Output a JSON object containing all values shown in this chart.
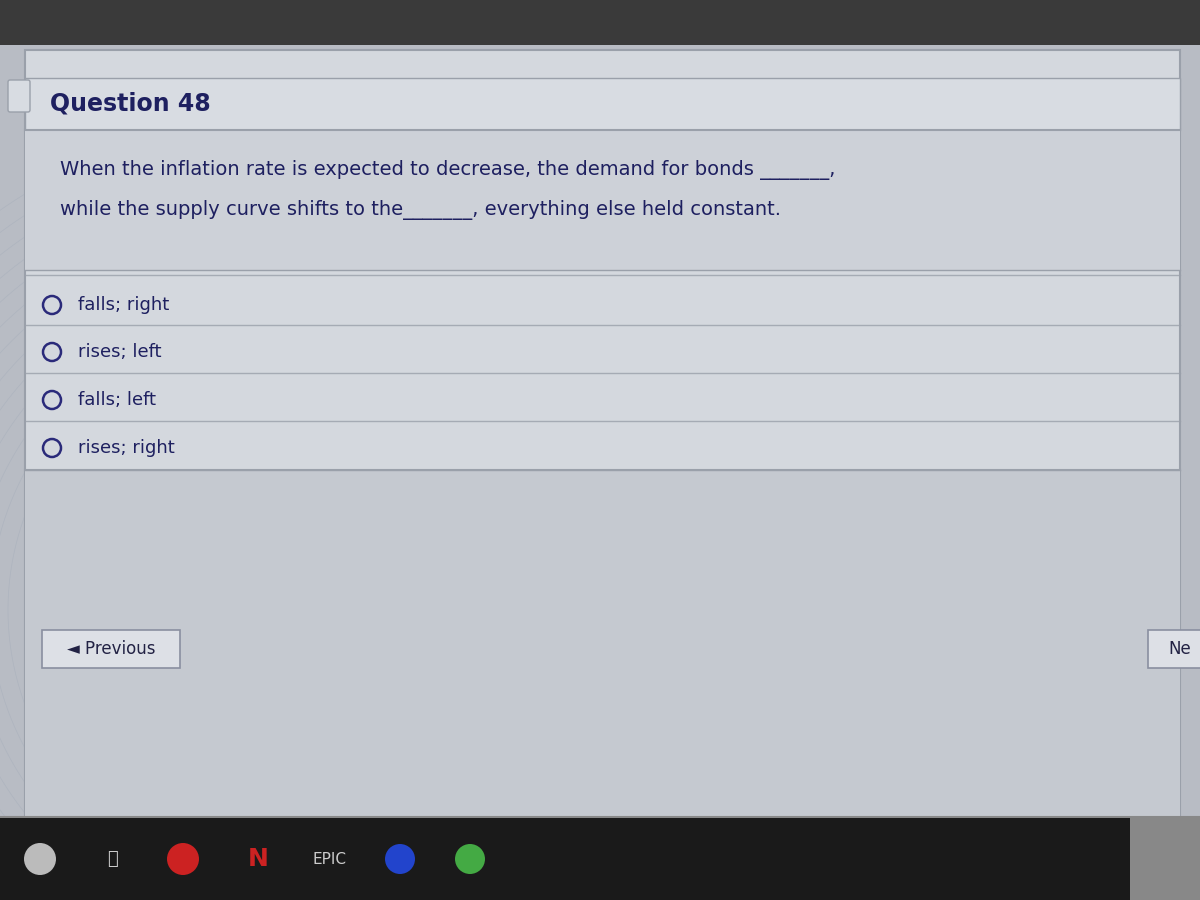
{
  "background_color": "#b8bcc4",
  "outer_panel_bg": "#c8ccd4",
  "main_panel_color": "#d4d8de",
  "header_bg": "#d8dce2",
  "body_bg": "#cdd1d8",
  "option_bg": "#cdd1d8",
  "nav_bg": "#c5c9d0",
  "question_header_text": "Question 48",
  "question_body_line1": "When the inflation rate is expected to decrease, the demand for bonds _______,",
  "question_body_line2": "while the supply curve shifts to the_______, everything else held constant.",
  "options": [
    "falls; right",
    "rises; left",
    "falls; left",
    "rises; right"
  ],
  "option_text_color": "#1e2060",
  "header_text_color": "#1e2060",
  "body_text_color": "#1e2060",
  "prev_button_text": "◄ Previous",
  "next_button_text": "Ne",
  "taskbar_color": "#1a1a1a",
  "taskbar_label": "EPIC",
  "panel_border_color": "#9aa0aa",
  "option_circle_color": "#2a2a7a",
  "title_fontsize": 17,
  "body_fontsize": 14,
  "option_fontsize": 13,
  "wave_color": "#b0b4c0",
  "grid_color": "#c0c4cc"
}
